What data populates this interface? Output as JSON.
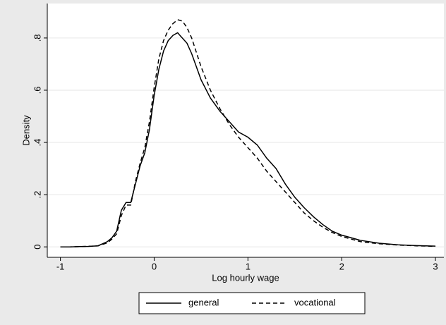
{
  "chart_data": {
    "type": "line",
    "x_label": "Log hourly wage",
    "y_label": "Density",
    "x": [
      -1,
      -0.9,
      -0.8,
      -0.7,
      -0.6,
      -0.5,
      -0.45,
      -0.4,
      -0.35,
      -0.3,
      -0.25,
      -0.2,
      -0.15,
      -0.1,
      -0.05,
      0,
      0.05,
      0.1,
      0.15,
      0.2,
      0.25,
      0.3,
      0.35,
      0.4,
      0.5,
      0.6,
      0.7,
      0.8,
      0.9,
      1.0,
      1.1,
      1.2,
      1.3,
      1.4,
      1.5,
      1.6,
      1.7,
      1.8,
      1.9,
      2.0,
      2.2,
      2.4,
      2.6,
      2.8,
      3.0
    ],
    "series": [
      {
        "name": "general",
        "color": "#000000",
        "dash": "solid",
        "values": [
          0,
          0,
          0.001,
          0.002,
          0.004,
          0.02,
          0.035,
          0.06,
          0.14,
          0.17,
          0.17,
          0.24,
          0.31,
          0.36,
          0.45,
          0.58,
          0.68,
          0.75,
          0.79,
          0.81,
          0.82,
          0.8,
          0.78,
          0.74,
          0.64,
          0.57,
          0.52,
          0.48,
          0.44,
          0.42,
          0.39,
          0.34,
          0.3,
          0.24,
          0.19,
          0.15,
          0.115,
          0.085,
          0.06,
          0.045,
          0.025,
          0.014,
          0.008,
          0.005,
          0.003
        ]
      },
      {
        "name": "vocational",
        "color": "#000000",
        "dash": "dashed",
        "values": [
          0,
          0,
          0.001,
          0.002,
          0.004,
          0.015,
          0.03,
          0.05,
          0.12,
          0.16,
          0.16,
          0.25,
          0.32,
          0.38,
          0.48,
          0.61,
          0.72,
          0.79,
          0.83,
          0.855,
          0.87,
          0.865,
          0.84,
          0.8,
          0.69,
          0.6,
          0.53,
          0.47,
          0.42,
          0.38,
          0.34,
          0.29,
          0.25,
          0.21,
          0.17,
          0.13,
          0.1,
          0.075,
          0.055,
          0.04,
          0.02,
          0.012,
          0.007,
          0.004,
          0.002
        ]
      }
    ],
    "xlim": [
      -1.14,
      3.09
    ],
    "xticks": [
      -1,
      0,
      1,
      2,
      3
    ],
    "ylim": [
      -0.04,
      0.932
    ],
    "yticks": [
      0,
      {
        "value": 0.2,
        "label": ".2"
      },
      {
        "value": 0.4,
        "label": ".4"
      },
      {
        "value": 0.6,
        "label": ".6"
      },
      {
        "value": 0.8,
        "label": ".8"
      }
    ],
    "grid": true,
    "legend": "bottom"
  }
}
